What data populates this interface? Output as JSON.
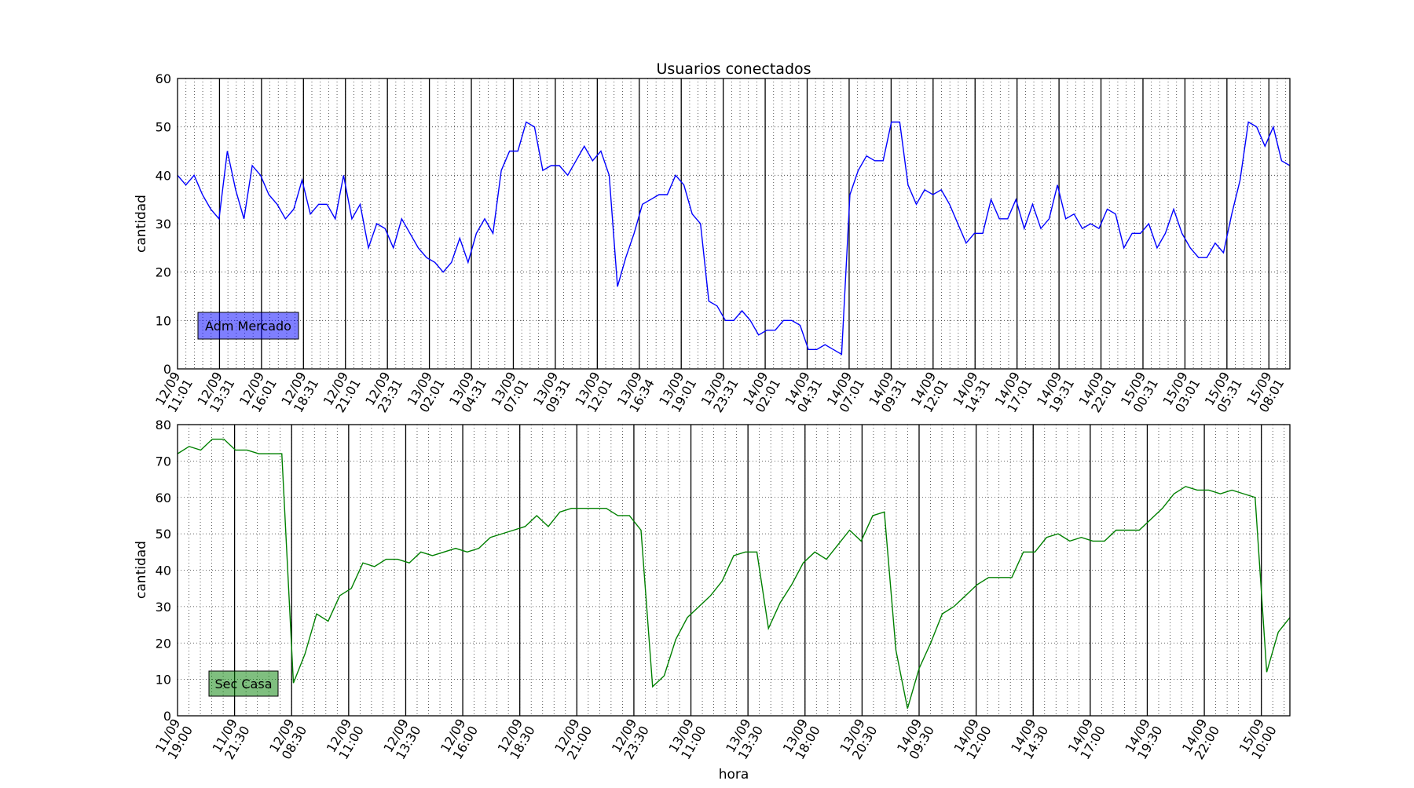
{
  "chart_data": [
    {
      "type": "line",
      "title": "Usuarios conectados",
      "xlabel": "",
      "ylabel": "cantidad",
      "ylim": [
        0,
        60
      ],
      "yticks": [
        0,
        10,
        20,
        30,
        40,
        50,
        60
      ],
      "grid": true,
      "legend_position": "lower-left",
      "series": [
        {
          "name": "Adm Mercado",
          "color": "#0000ff",
          "values": [
            40,
            38,
            40,
            36,
            33,
            31,
            45,
            37,
            31,
            42,
            40,
            36,
            34,
            31,
            33,
            39,
            32,
            34,
            34,
            31,
            40,
            31,
            34,
            25,
            30,
            29,
            25,
            31,
            28,
            25,
            23,
            22,
            20,
            22,
            27,
            22,
            28,
            31,
            28,
            41,
            45,
            45,
            51,
            50,
            41,
            42,
            42,
            40,
            43,
            46,
            43,
            45,
            40,
            17,
            23,
            28,
            34,
            35,
            36,
            36,
            40,
            38,
            32,
            30,
            14,
            13,
            10,
            10,
            12,
            10,
            7,
            8,
            8,
            10,
            10,
            9,
            4,
            4,
            5,
            4,
            3,
            36,
            41,
            44,
            43,
            43,
            51,
            51,
            38,
            34,
            37,
            36,
            37,
            34,
            30,
            26,
            28,
            28,
            35,
            31,
            31,
            35,
            29,
            34,
            29,
            31,
            38,
            31,
            32,
            29,
            30,
            29,
            33,
            32,
            25,
            28,
            28,
            30,
            25,
            28,
            33,
            28,
            25,
            23,
            23,
            26,
            24,
            32,
            39,
            51,
            50,
            46,
            50,
            43,
            42
          ]
        }
      ],
      "x_tick_labels": [
        [
          "12/09",
          "11:01"
        ],
        [
          "12/09",
          "13:31"
        ],
        [
          "12/09",
          "16:01"
        ],
        [
          "12/09",
          "18:31"
        ],
        [
          "12/09",
          "21:01"
        ],
        [
          "12/09",
          "23:31"
        ],
        [
          "13/09",
          "02:01"
        ],
        [
          "13/09",
          "04:31"
        ],
        [
          "13/09",
          "07:01"
        ],
        [
          "13/09",
          "09:31"
        ],
        [
          "13/09",
          "12:01"
        ],
        [
          "13/09",
          "16:34"
        ],
        [
          "13/09",
          "19:01"
        ],
        [
          "13/09",
          "23:31"
        ],
        [
          "14/09",
          "02:01"
        ],
        [
          "14/09",
          "04:31"
        ],
        [
          "14/09",
          "07:01"
        ],
        [
          "14/09",
          "09:31"
        ],
        [
          "14/09",
          "12:01"
        ],
        [
          "14/09",
          "14:31"
        ],
        [
          "14/09",
          "17:01"
        ],
        [
          "14/09",
          "19:31"
        ],
        [
          "14/09",
          "22:01"
        ],
        [
          "15/09",
          "00:31"
        ],
        [
          "15/09",
          "03:01"
        ],
        [
          "15/09",
          "05:31"
        ],
        [
          "15/09",
          "08:01"
        ]
      ]
    },
    {
      "type": "line",
      "title": "",
      "xlabel": "hora",
      "ylabel": "cantidad",
      "ylim": [
        0,
        80
      ],
      "yticks": [
        0,
        10,
        20,
        30,
        40,
        50,
        60,
        70,
        80
      ],
      "grid": true,
      "legend_position": "lower-left",
      "series": [
        {
          "name": "Sec Casa",
          "color": "#008000",
          "values": [
            72,
            74,
            73,
            76,
            76,
            73,
            73,
            72,
            72,
            72,
            9,
            17,
            28,
            26,
            33,
            35,
            42,
            41,
            43,
            43,
            42,
            45,
            44,
            45,
            46,
            45,
            46,
            49,
            50,
            51,
            52,
            55,
            52,
            56,
            57,
            57,
            57,
            57,
            55,
            55,
            51,
            8,
            11,
            21,
            27,
            30,
            33,
            37,
            44,
            45,
            45,
            24,
            31,
            36,
            42,
            45,
            43,
            47,
            51,
            48,
            55,
            56,
            18,
            2,
            13,
            20,
            28,
            30,
            33,
            36,
            38,
            38,
            38,
            45,
            45,
            49,
            50,
            48,
            49,
            48,
            48,
            51,
            51,
            51,
            54,
            57,
            61,
            63,
            62,
            62,
            61,
            62,
            61,
            60,
            12,
            23,
            27
          ]
        }
      ],
      "x_tick_labels": [
        [
          "11/09",
          "19:00"
        ],
        [
          "11/09",
          "21:30"
        ],
        [
          "12/09",
          "08:30"
        ],
        [
          "12/09",
          "11:00"
        ],
        [
          "12/09",
          "13:30"
        ],
        [
          "12/09",
          "16:00"
        ],
        [
          "12/09",
          "18:30"
        ],
        [
          "12/09",
          "21:00"
        ],
        [
          "12/09",
          "23:30"
        ],
        [
          "13/09",
          "11:00"
        ],
        [
          "13/09",
          "13:30"
        ],
        [
          "13/09",
          "18:00"
        ],
        [
          "13/09",
          "20:30"
        ],
        [
          "14/09",
          "09:30"
        ],
        [
          "14/09",
          "12:00"
        ],
        [
          "14/09",
          "14:30"
        ],
        [
          "14/09",
          "17:00"
        ],
        [
          "14/09",
          "19:30"
        ],
        [
          "14/09",
          "22:00"
        ],
        [
          "15/09",
          "10:00"
        ]
      ]
    }
  ]
}
